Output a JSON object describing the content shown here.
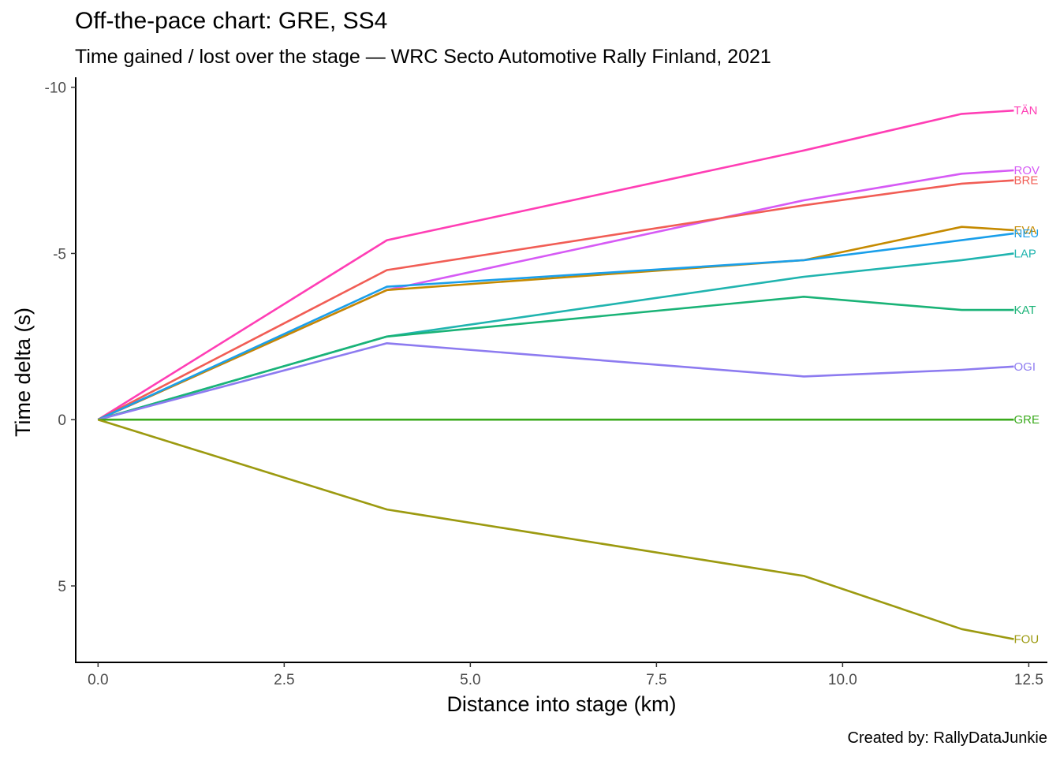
{
  "chart_data": {
    "type": "line",
    "title": "Off-the-pace chart: GRE, SS4",
    "subtitle": "Time gained / lost over the stage — WRC Secto Automotive Rally Finland, 2021",
    "caption": "Created by: RallyDataJunkie",
    "xlabel": "Distance into stage (km)",
    "ylabel": "Time delta (s)",
    "xlim": [
      -0.3,
      12.75
    ],
    "ylim": [
      7.3,
      -10.3
    ],
    "y_reversed": true,
    "x_ticks": [
      0,
      2.5,
      5,
      7.5,
      10,
      12.5
    ],
    "x_tick_labels": [
      "0.0",
      "2.5",
      "5.0",
      "7.5",
      "10.0",
      "12.5"
    ],
    "y_ticks": [
      -10,
      -5,
      0,
      5
    ],
    "y_tick_labels": [
      "-10",
      "-5",
      "0",
      "5"
    ],
    "grid": false,
    "legend": "none (direct labels at line ends)",
    "x": [
      0,
      3.88,
      9.48,
      11.6,
      12.3
    ],
    "series": [
      {
        "name": "TÄN",
        "color": "#FF3EB5",
        "values": [
          0,
          -5.4,
          -8.1,
          -9.2,
          -9.3
        ]
      },
      {
        "name": "ROV",
        "color": "#D65AF5",
        "values": [
          0,
          -3.9,
          -6.6,
          -7.4,
          -7.5
        ]
      },
      {
        "name": "BRE",
        "color": "#F15D55",
        "values": [
          0,
          -4.5,
          -6.45,
          -7.1,
          -7.2
        ]
      },
      {
        "name": "EVA",
        "color": "#C58A00",
        "values": [
          0,
          -3.9,
          -4.8,
          -5.8,
          -5.7
        ]
      },
      {
        "name": "NEU",
        "color": "#1A9FEA",
        "values": [
          0,
          -4.0,
          -4.8,
          -5.4,
          -5.6
        ]
      },
      {
        "name": "LAP",
        "color": "#20B4AF",
        "values": [
          0,
          -2.5,
          -4.3,
          -4.8,
          -5.0
        ]
      },
      {
        "name": "KAT",
        "color": "#1AB377",
        "values": [
          0,
          -2.5,
          -3.7,
          -3.3,
          -3.3
        ]
      },
      {
        "name": "OGI",
        "color": "#8D7BF0",
        "values": [
          0,
          -2.3,
          -1.3,
          -1.5,
          -1.6
        ]
      },
      {
        "name": "GRE",
        "color": "#3AAA1C",
        "values": [
          0,
          0,
          0,
          0,
          0
        ]
      },
      {
        "name": "FOU",
        "color": "#9C9A10",
        "values": [
          0,
          2.7,
          4.7,
          6.3,
          6.6
        ]
      }
    ]
  }
}
